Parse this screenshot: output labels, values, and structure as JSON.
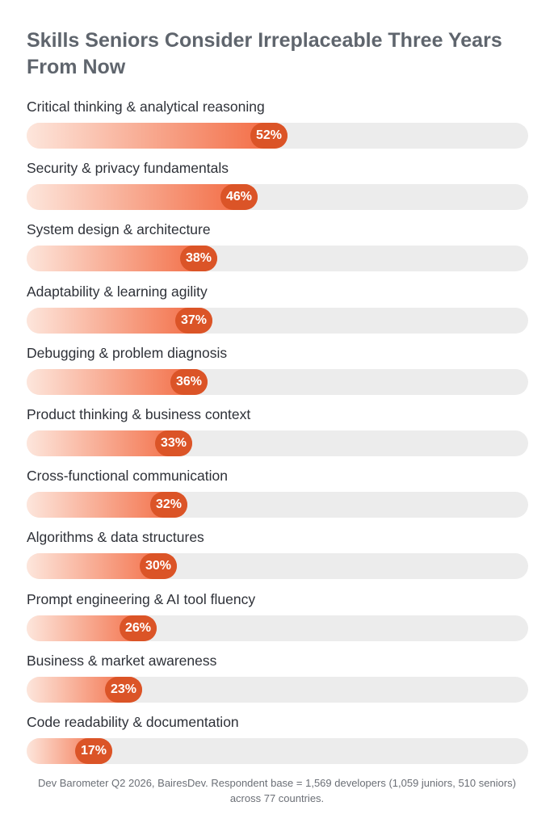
{
  "title": "Skills Seniors Consider Irreplaceable Three Years From Now",
  "footnote": "Dev Barometer Q2 2026, BairesDev. Respondent base = 1,569 developers (1,059 juniors, 510 seniors) across 77 countries.",
  "colors": {
    "bar_start": "#fde6dc",
    "bar_end": "#f2643a",
    "label_pill": "#db5427",
    "track": "#ececec",
    "title": "#5f656d"
  },
  "chart_data": {
    "type": "bar",
    "orientation": "horizontal",
    "title": "Skills Seniors Consider Irreplaceable Three Years From Now",
    "xlim": [
      0,
      100
    ],
    "categories": [
      "Critical thinking & analytical reasoning",
      "Security & privacy fundamentals",
      "System design & architecture",
      "Adaptability & learning agility",
      "Debugging & problem diagnosis",
      "Product thinking & business context",
      "Cross-functional communication",
      "Algorithms & data structures",
      "Prompt engineering & AI tool fluency",
      "Business & market awareness",
      "Code readability & documentation"
    ],
    "values": [
      52,
      46,
      38,
      37,
      36,
      33,
      32,
      30,
      26,
      23,
      17
    ],
    "value_labels": [
      "52%",
      "46%",
      "38%",
      "37%",
      "36%",
      "33%",
      "32%",
      "30%",
      "26%",
      "23%",
      "17%"
    ]
  }
}
